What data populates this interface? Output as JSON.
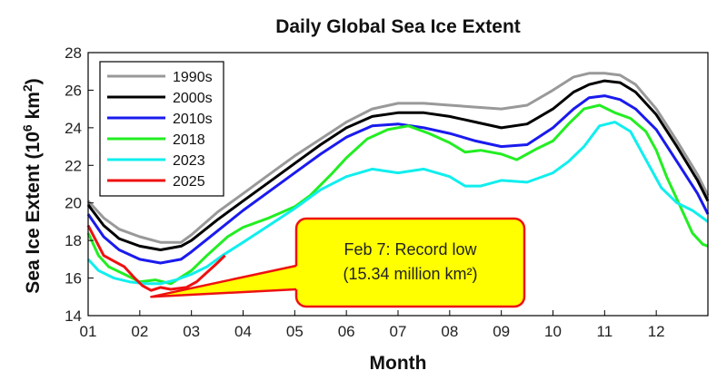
{
  "chart_data": {
    "type": "line",
    "title": "Daily Global Sea Ice Extent",
    "xlabel": "Month",
    "ylabel": "Sea Ice Extent (10",
    "ylabel_sup": "6",
    "ylabel_tail": " km",
    "ylabel_sup2": "2",
    "ylabel_close": ")",
    "xlim": [
      1,
      13
    ],
    "ylim": [
      14,
      28
    ],
    "x_ticks": [
      {
        "value": 1,
        "label": "01"
      },
      {
        "value": 2,
        "label": "02"
      },
      {
        "value": 3,
        "label": "03"
      },
      {
        "value": 4,
        "label": "04"
      },
      {
        "value": 5,
        "label": "05"
      },
      {
        "value": 6,
        "label": "06"
      },
      {
        "value": 7,
        "label": "07"
      },
      {
        "value": 8,
        "label": "08"
      },
      {
        "value": 9,
        "label": "09"
      },
      {
        "value": 10,
        "label": "10"
      },
      {
        "value": 11,
        "label": "11"
      },
      {
        "value": 12,
        "label": "12"
      }
    ],
    "y_ticks": [
      {
        "value": 14,
        "label": "14"
      },
      {
        "value": 16,
        "label": "16"
      },
      {
        "value": 18,
        "label": "18"
      },
      {
        "value": 20,
        "label": "20"
      },
      {
        "value": 22,
        "label": "22"
      },
      {
        "value": 24,
        "label": "24"
      },
      {
        "value": 26,
        "label": "26"
      },
      {
        "value": 28,
        "label": "28"
      }
    ],
    "grid": false,
    "legend_position": "top-left",
    "series": [
      {
        "name": "1990s",
        "color": "#999999",
        "points": [
          [
            1,
            20.1
          ],
          [
            1.3,
            19.2
          ],
          [
            1.6,
            18.6
          ],
          [
            2.0,
            18.2
          ],
          [
            2.4,
            17.9
          ],
          [
            2.8,
            17.9
          ],
          [
            3.0,
            18.3
          ],
          [
            3.5,
            19.5
          ],
          [
            4.0,
            20.5
          ],
          [
            4.5,
            21.5
          ],
          [
            5.0,
            22.5
          ],
          [
            5.5,
            23.4
          ],
          [
            6.0,
            24.3
          ],
          [
            6.5,
            25.0
          ],
          [
            7.0,
            25.3
          ],
          [
            7.5,
            25.3
          ],
          [
            8.0,
            25.2
          ],
          [
            8.5,
            25.1
          ],
          [
            9.0,
            25.0
          ],
          [
            9.5,
            25.2
          ],
          [
            10.0,
            26.0
          ],
          [
            10.4,
            26.7
          ],
          [
            10.7,
            26.9
          ],
          [
            11.0,
            26.9
          ],
          [
            11.3,
            26.8
          ],
          [
            11.6,
            26.3
          ],
          [
            12.0,
            25.0
          ],
          [
            12.4,
            23.3
          ],
          [
            12.8,
            21.5
          ],
          [
            13.0,
            20.4
          ]
        ]
      },
      {
        "name": "2000s",
        "color": "#000000",
        "points": [
          [
            1,
            19.9
          ],
          [
            1.3,
            18.8
          ],
          [
            1.6,
            18.1
          ],
          [
            2.0,
            17.7
          ],
          [
            2.4,
            17.5
          ],
          [
            2.8,
            17.7
          ],
          [
            3.0,
            18.0
          ],
          [
            3.5,
            19.1
          ],
          [
            4.0,
            20.1
          ],
          [
            4.5,
            21.1
          ],
          [
            5.0,
            22.1
          ],
          [
            5.5,
            23.1
          ],
          [
            6.0,
            24.0
          ],
          [
            6.5,
            24.6
          ],
          [
            7.0,
            24.8
          ],
          [
            7.5,
            24.8
          ],
          [
            8.0,
            24.6
          ],
          [
            8.5,
            24.3
          ],
          [
            9.0,
            24.0
          ],
          [
            9.5,
            24.2
          ],
          [
            10.0,
            25.0
          ],
          [
            10.4,
            25.9
          ],
          [
            10.7,
            26.3
          ],
          [
            11.0,
            26.5
          ],
          [
            11.3,
            26.4
          ],
          [
            11.6,
            25.9
          ],
          [
            12.0,
            24.7
          ],
          [
            12.4,
            23.0
          ],
          [
            12.8,
            21.2
          ],
          [
            13.0,
            20.1
          ]
        ]
      },
      {
        "name": "2010s",
        "color": "#1a1aee",
        "points": [
          [
            1,
            19.4
          ],
          [
            1.3,
            18.2
          ],
          [
            1.6,
            17.5
          ],
          [
            2.0,
            17.0
          ],
          [
            2.4,
            16.8
          ],
          [
            2.8,
            17.0
          ],
          [
            3.0,
            17.4
          ],
          [
            3.5,
            18.5
          ],
          [
            4.0,
            19.6
          ],
          [
            4.5,
            20.6
          ],
          [
            5.0,
            21.6
          ],
          [
            5.5,
            22.6
          ],
          [
            6.0,
            23.5
          ],
          [
            6.5,
            24.1
          ],
          [
            7.0,
            24.2
          ],
          [
            7.5,
            24.0
          ],
          [
            8.0,
            23.7
          ],
          [
            8.5,
            23.3
          ],
          [
            9.0,
            23.0
          ],
          [
            9.5,
            23.1
          ],
          [
            10.0,
            24.0
          ],
          [
            10.4,
            25.0
          ],
          [
            10.7,
            25.6
          ],
          [
            11.0,
            25.7
          ],
          [
            11.3,
            25.5
          ],
          [
            11.6,
            25.0
          ],
          [
            12.0,
            23.9
          ],
          [
            12.4,
            22.2
          ],
          [
            12.8,
            20.5
          ],
          [
            13.0,
            19.4
          ]
        ]
      },
      {
        "name": "2018",
        "color": "#22ee22",
        "points": [
          [
            1,
            18.4
          ],
          [
            1.2,
            17.2
          ],
          [
            1.4,
            16.6
          ],
          [
            1.7,
            16.2
          ],
          [
            2.0,
            15.8
          ],
          [
            2.3,
            15.9
          ],
          [
            2.6,
            15.7
          ],
          [
            3.0,
            16.4
          ],
          [
            3.3,
            17.2
          ],
          [
            3.7,
            18.2
          ],
          [
            4.0,
            18.7
          ],
          [
            4.5,
            19.2
          ],
          [
            5.0,
            19.8
          ],
          [
            5.3,
            20.4
          ],
          [
            5.7,
            21.5
          ],
          [
            6.0,
            22.4
          ],
          [
            6.4,
            23.4
          ],
          [
            6.8,
            23.9
          ],
          [
            7.2,
            24.1
          ],
          [
            7.6,
            23.7
          ],
          [
            8.0,
            23.2
          ],
          [
            8.3,
            22.7
          ],
          [
            8.6,
            22.8
          ],
          [
            9.0,
            22.6
          ],
          [
            9.3,
            22.3
          ],
          [
            9.7,
            22.9
          ],
          [
            10.0,
            23.3
          ],
          [
            10.3,
            24.2
          ],
          [
            10.6,
            25.0
          ],
          [
            10.9,
            25.2
          ],
          [
            11.2,
            24.8
          ],
          [
            11.5,
            24.5
          ],
          [
            11.8,
            23.8
          ],
          [
            12.0,
            22.8
          ],
          [
            12.2,
            21.4
          ],
          [
            12.5,
            19.6
          ],
          [
            12.7,
            18.4
          ],
          [
            12.9,
            17.8
          ],
          [
            13.0,
            17.7
          ]
        ]
      },
      {
        "name": "2023",
        "color": "#11eeee",
        "points": [
          [
            1,
            17.0
          ],
          [
            1.2,
            16.4
          ],
          [
            1.5,
            16.0
          ],
          [
            1.8,
            15.8
          ],
          [
            2.1,
            15.7
          ],
          [
            2.4,
            15.7
          ],
          [
            2.7,
            15.9
          ],
          [
            3.0,
            16.2
          ],
          [
            3.3,
            16.6
          ],
          [
            3.6,
            17.2
          ],
          [
            4.0,
            17.9
          ],
          [
            4.5,
            18.8
          ],
          [
            5.0,
            19.7
          ],
          [
            5.5,
            20.7
          ],
          [
            6.0,
            21.4
          ],
          [
            6.5,
            21.8
          ],
          [
            7.0,
            21.6
          ],
          [
            7.5,
            21.8
          ],
          [
            8.0,
            21.4
          ],
          [
            8.3,
            20.9
          ],
          [
            8.6,
            20.9
          ],
          [
            9.0,
            21.2
          ],
          [
            9.5,
            21.1
          ],
          [
            10.0,
            21.6
          ],
          [
            10.3,
            22.2
          ],
          [
            10.6,
            23.0
          ],
          [
            10.9,
            24.1
          ],
          [
            11.2,
            24.3
          ],
          [
            11.5,
            23.8
          ],
          [
            11.8,
            22.3
          ],
          [
            12.1,
            20.8
          ],
          [
            12.4,
            20.0
          ],
          [
            12.7,
            19.6
          ],
          [
            13.0,
            19.0
          ]
        ]
      },
      {
        "name": "2025",
        "color": "#ee1111",
        "points": [
          [
            1,
            18.8
          ],
          [
            1.15,
            18.0
          ],
          [
            1.3,
            17.2
          ],
          [
            1.5,
            16.9
          ],
          [
            1.7,
            16.6
          ],
          [
            1.9,
            16.0
          ],
          [
            2.05,
            15.6
          ],
          [
            2.22,
            15.34
          ],
          [
            2.4,
            15.5
          ],
          [
            2.6,
            15.4
          ],
          [
            2.9,
            15.5
          ],
          [
            3.1,
            15.8
          ],
          [
            3.3,
            16.3
          ],
          [
            3.5,
            16.8
          ],
          [
            3.65,
            17.2
          ]
        ]
      }
    ],
    "annotation": {
      "line1": "Feb 7: Record low",
      "line2": "(15.34 million km²)",
      "point": [
        2.22,
        15.0
      ],
      "fill": "#ffff00",
      "border": "#ee1111"
    }
  }
}
